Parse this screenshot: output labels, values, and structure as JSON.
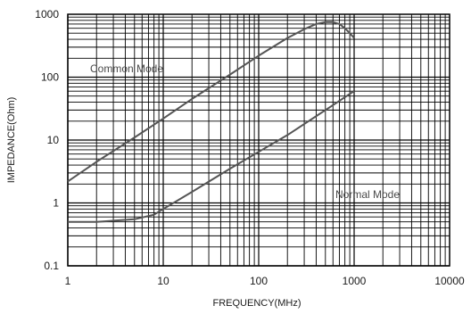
{
  "chart_data": {
    "type": "line",
    "title": "",
    "xlabel": "FREQUENCY(MHz)",
    "ylabel": "IMPEDANCE(Ohm)",
    "xscale": "log",
    "yscale": "log",
    "xlim": [
      1,
      10000
    ],
    "ylim": [
      0.1,
      1000
    ],
    "x_tick_labels": [
      "1",
      "10",
      "100",
      "1000",
      "10000"
    ],
    "y_tick_labels": [
      "0.1",
      "1",
      "10",
      "100",
      "1000"
    ],
    "grid": true,
    "series": [
      {
        "name": "Common Mode",
        "x": [
          1,
          2,
          5,
          10,
          20,
          50,
          100,
          200,
          300,
          400,
          500,
          600,
          700,
          800,
          900,
          1000
        ],
        "y": [
          2.2,
          4.5,
          11,
          22,
          45,
          110,
          220,
          420,
          580,
          700,
          750,
          750,
          700,
          600,
          500,
          420
        ]
      },
      {
        "name": "Normal Mode",
        "x": [
          1,
          2,
          5,
          8,
          10,
          20,
          50,
          100,
          200,
          500,
          1000
        ],
        "y": [
          0.5,
          0.5,
          0.55,
          0.65,
          0.8,
          1.5,
          3.5,
          6.5,
          12,
          30,
          60
        ]
      }
    ],
    "color": "#555555"
  }
}
